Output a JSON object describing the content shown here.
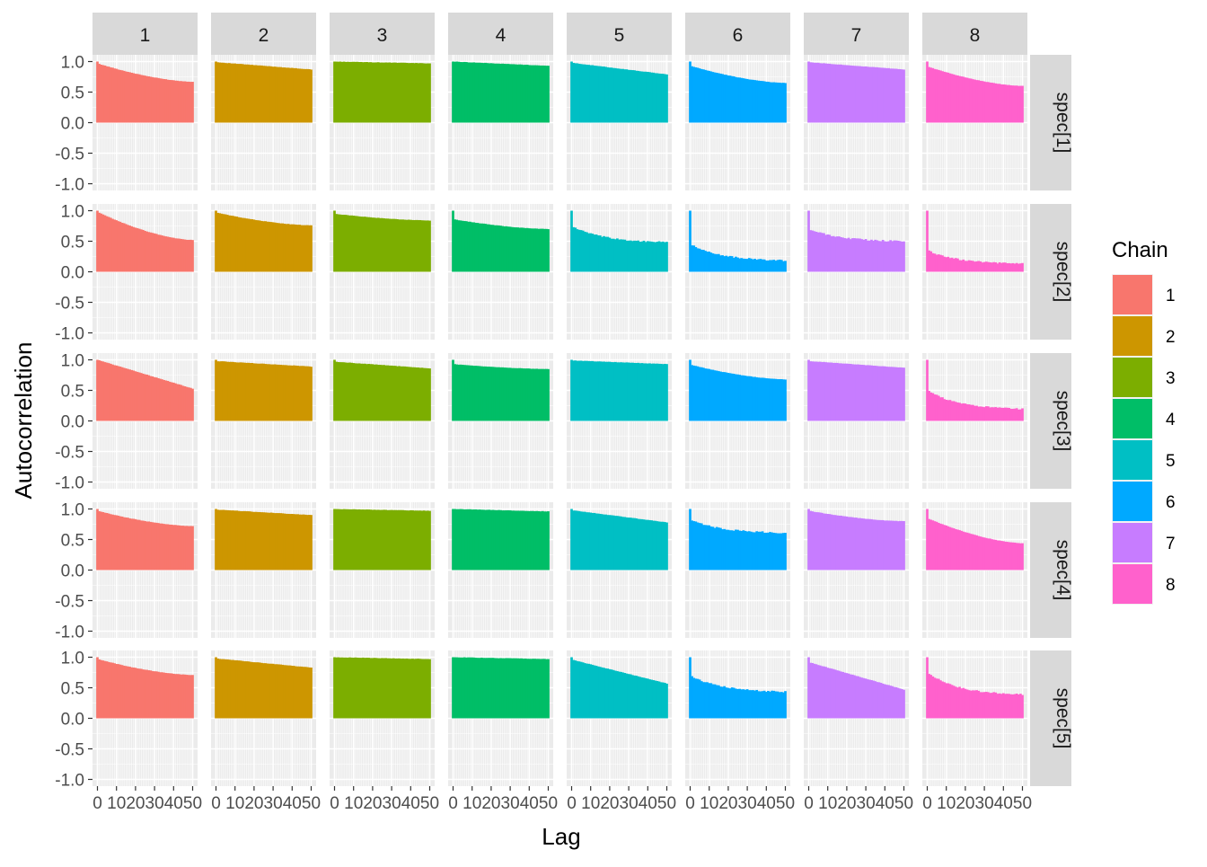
{
  "chart_data": {
    "type": "bar",
    "title": "",
    "xlabel": "Lag",
    "ylabel": "Autocorrelation",
    "facet_columns": [
      "1",
      "2",
      "3",
      "4",
      "5",
      "6",
      "7",
      "8"
    ],
    "facet_rows": [
      "spec[1]",
      "spec[2]",
      "spec[3]",
      "spec[4]",
      "spec[5]"
    ],
    "x_range": [
      0,
      50
    ],
    "ylim": [
      -1,
      1
    ],
    "x_ticks": [
      "0",
      "10",
      "20",
      "30",
      "40",
      "50"
    ],
    "y_ticks": [
      "-1.0",
      "-0.5",
      "0.0",
      "0.5",
      "1.0"
    ],
    "grid": true,
    "legend": {
      "title": "Chain",
      "position": "right",
      "items": [
        "1",
        "2",
        "3",
        "4",
        "5",
        "6",
        "7",
        "8"
      ],
      "colors": [
        "#F8766D",
        "#CD9600",
        "#7CAE00",
        "#00BE67",
        "#00BFC4",
        "#00A9FF",
        "#C77CFF",
        "#FF61CC"
      ]
    },
    "panels": [
      [
        {
          "chain": "1",
          "drop": 0.97,
          "end": 0.67,
          "shape": "concave"
        },
        {
          "chain": "2",
          "drop": 0.99,
          "end": 0.87,
          "shape": "linear"
        },
        {
          "chain": "3",
          "drop": 1.0,
          "end": 0.97,
          "shape": "linear"
        },
        {
          "chain": "4",
          "drop": 1.0,
          "end": 0.93,
          "shape": "linear"
        },
        {
          "chain": "5",
          "drop": 0.98,
          "end": 0.79,
          "shape": "linear"
        },
        {
          "chain": "6",
          "drop": 0.93,
          "end": 0.65,
          "shape": "concave"
        },
        {
          "chain": "7",
          "drop": 0.99,
          "end": 0.87,
          "shape": "linear"
        },
        {
          "chain": "8",
          "drop": 0.92,
          "end": 0.6,
          "shape": "concave"
        }
      ],
      [
        {
          "chain": "1",
          "drop": 0.98,
          "end": 0.52,
          "shape": "concave"
        },
        {
          "chain": "2",
          "drop": 0.97,
          "end": 0.76,
          "shape": "concave"
        },
        {
          "chain": "3",
          "drop": 0.95,
          "end": 0.84,
          "shape": "concave"
        },
        {
          "chain": "4",
          "drop": 0.86,
          "end": 0.7,
          "shape": "concave"
        },
        {
          "chain": "5",
          "drop": 0.75,
          "end": 0.47,
          "shape": "steep"
        },
        {
          "chain": "6",
          "drop": 0.45,
          "end": 0.17,
          "shape": "steep"
        },
        {
          "chain": "7",
          "drop": 0.7,
          "end": 0.49,
          "shape": "steep"
        },
        {
          "chain": "8",
          "drop": 0.35,
          "end": 0.12,
          "shape": "steep"
        }
      ],
      [
        {
          "chain": "1",
          "drop": 1.0,
          "end": 0.53,
          "shape": "linear"
        },
        {
          "chain": "2",
          "drop": 0.98,
          "end": 0.89,
          "shape": "linear"
        },
        {
          "chain": "3",
          "drop": 0.97,
          "end": 0.86,
          "shape": "linear"
        },
        {
          "chain": "4",
          "drop": 0.93,
          "end": 0.85,
          "shape": "concave"
        },
        {
          "chain": "5",
          "drop": 0.99,
          "end": 0.93,
          "shape": "linear"
        },
        {
          "chain": "6",
          "drop": 0.92,
          "end": 0.68,
          "shape": "concave"
        },
        {
          "chain": "7",
          "drop": 0.98,
          "end": 0.87,
          "shape": "linear"
        },
        {
          "chain": "8",
          "drop": 0.5,
          "end": 0.18,
          "shape": "steep"
        }
      ],
      [
        {
          "chain": "1",
          "drop": 0.97,
          "end": 0.72,
          "shape": "concave"
        },
        {
          "chain": "2",
          "drop": 0.99,
          "end": 0.9,
          "shape": "linear"
        },
        {
          "chain": "3",
          "drop": 1.0,
          "end": 0.97,
          "shape": "linear"
        },
        {
          "chain": "4",
          "drop": 1.0,
          "end": 0.96,
          "shape": "linear"
        },
        {
          "chain": "5",
          "drop": 0.98,
          "end": 0.78,
          "shape": "linear"
        },
        {
          "chain": "6",
          "drop": 0.82,
          "end": 0.6,
          "shape": "steep"
        },
        {
          "chain": "7",
          "drop": 0.97,
          "end": 0.8,
          "shape": "concave"
        },
        {
          "chain": "8",
          "drop": 0.85,
          "end": 0.44,
          "shape": "concave"
        }
      ],
      [
        {
          "chain": "1",
          "drop": 0.97,
          "end": 0.71,
          "shape": "concave"
        },
        {
          "chain": "2",
          "drop": 0.98,
          "end": 0.83,
          "shape": "linear"
        },
        {
          "chain": "3",
          "drop": 1.0,
          "end": 0.97,
          "shape": "linear"
        },
        {
          "chain": "4",
          "drop": 1.0,
          "end": 0.97,
          "shape": "linear"
        },
        {
          "chain": "5",
          "drop": 0.96,
          "end": 0.57,
          "shape": "linear"
        },
        {
          "chain": "6",
          "drop": 0.7,
          "end": 0.42,
          "shape": "steep"
        },
        {
          "chain": "7",
          "drop": 0.92,
          "end": 0.47,
          "shape": "linear"
        },
        {
          "chain": "8",
          "drop": 0.75,
          "end": 0.37,
          "shape": "steep"
        }
      ]
    ]
  }
}
